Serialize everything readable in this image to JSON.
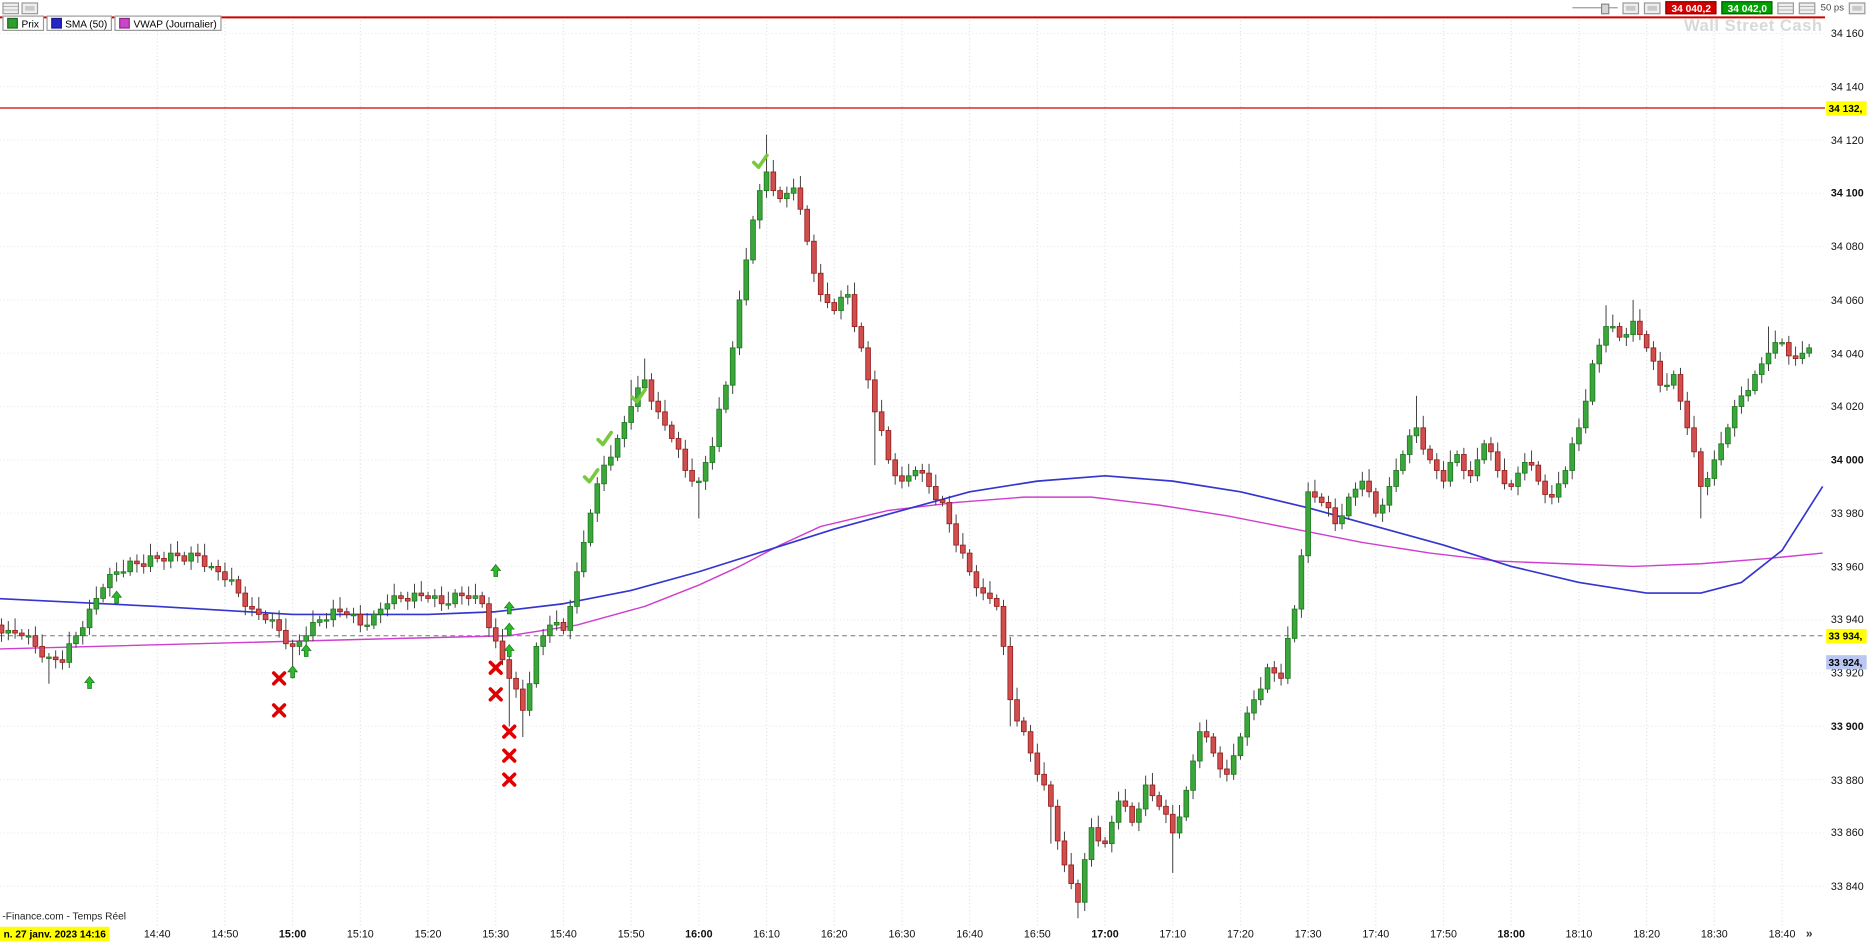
{
  "colors": {
    "up": "#3ba63b",
    "up_stroke": "#1e7a1e",
    "down": "#cf4f4f",
    "down_stroke": "#9b1c1c",
    "sma": "#3535cf",
    "vwap": "#cf3fcf",
    "grid": "#e3e3e3",
    "alert": "#cc0000",
    "sell": "#d40000",
    "buy": "#00a000",
    "arrow": "#2db82d",
    "cross": "#e00000",
    "check": "#77c93e"
  },
  "toolbar": {
    "sell_price": "34 040,2",
    "buy_price": "34 042,0",
    "bar_spacing": "50 ps"
  },
  "legend": [
    {
      "label": "Prix",
      "color": "#2e9e2e"
    },
    {
      "label": "SMA (50)",
      "color": "#2626cc"
    },
    {
      "label": "VWAP (Journalier)",
      "color": "#cc44cc"
    }
  ],
  "footer": {
    "source": "-Finance.com - Temps Réel",
    "cursor_date_tag": "n. 27 janv. 2023 14:16",
    "fast_forward": "»"
  },
  "chart_data": {
    "type": "candlestick",
    "instrument_watermark": "Wall Street Cash",
    "session_start": "14:16",
    "minutes_per_stored_close": 2,
    "y_axis": {
      "min": 33840,
      "max": 34160,
      "step": 20,
      "ticks": [
        {
          "p": 34160,
          "label": "34 160"
        },
        {
          "p": 34140,
          "label": "34 140"
        },
        {
          "p": 34120,
          "label": "34 120"
        },
        {
          "p": 34100,
          "label": "34 100"
        },
        {
          "p": 34080,
          "label": "34 080"
        },
        {
          "p": 34060,
          "label": "34 060"
        },
        {
          "p": 34040,
          "label": "34 040"
        },
        {
          "p": 34020,
          "label": "34 020"
        },
        {
          "p": 34000,
          "label": "34 000"
        },
        {
          "p": 33980,
          "label": "33 980"
        },
        {
          "p": 33960,
          "label": "33 960"
        },
        {
          "p": 33940,
          "label": "33 940"
        },
        {
          "p": 33920,
          "label": "33 920"
        },
        {
          "p": 33900,
          "label": "33 900"
        },
        {
          "p": 33880,
          "label": "33 880"
        },
        {
          "p": 33860,
          "label": "33 860"
        },
        {
          "p": 33840,
          "label": "33 840"
        }
      ]
    },
    "x_axis": {
      "ticks": [
        {
          "m": 24,
          "label": "14:40"
        },
        {
          "m": 34,
          "label": "14:50"
        },
        {
          "m": 44,
          "label": "15:00"
        },
        {
          "m": 54,
          "label": "15:10"
        },
        {
          "m": 64,
          "label": "15:20"
        },
        {
          "m": 74,
          "label": "15:30"
        },
        {
          "m": 84,
          "label": "15:40"
        },
        {
          "m": 94,
          "label": "15:50"
        },
        {
          "m": 104,
          "label": "16:00"
        },
        {
          "m": 114,
          "label": "16:10"
        },
        {
          "m": 124,
          "label": "16:20"
        },
        {
          "m": 134,
          "label": "16:30"
        },
        {
          "m": 144,
          "label": "16:40"
        },
        {
          "m": 154,
          "label": "16:50"
        },
        {
          "m": 164,
          "label": "17:00"
        },
        {
          "m": 174,
          "label": "17:10"
        },
        {
          "m": 184,
          "label": "17:20"
        },
        {
          "m": 194,
          "label": "17:30"
        },
        {
          "m": 204,
          "label": "17:40"
        },
        {
          "m": 214,
          "label": "17:50"
        },
        {
          "m": 224,
          "label": "18:00"
        },
        {
          "m": 234,
          "label": "18:10"
        },
        {
          "m": 244,
          "label": "18:20"
        },
        {
          "m": 254,
          "label": "18:30"
        },
        {
          "m": 264,
          "label": "18:40"
        }
      ]
    },
    "first_open": 33940,
    "closes": [
      33938,
      33936,
      33934,
      33930,
      33926,
      33924,
      33934,
      33944,
      33952,
      33958,
      33962,
      33960,
      33963,
      33965,
      33962,
      33964,
      33960,
      33955,
      33950,
      33944,
      33940,
      33936,
      33930,
      33934,
      33940,
      33944,
      33942,
      33938,
      33942,
      33946,
      33948,
      33950,
      33948,
      33946,
      33950,
      33948,
      33946,
      33932,
      33918,
      33906,
      33930,
      33938,
      33936,
      33958,
      33980,
      33998,
      34008,
      34020,
      34030,
      34018,
      34008,
      33996,
      33992,
      34005,
      34028,
      34060,
      34090,
      34108,
      34098,
      34102,
      34082,
      34062,
      34056,
      34062,
      34042,
      34018,
      34000,
      33992,
      33996,
      33990,
      33984,
      33968,
      33958,
      33950,
      33945,
      33910,
      33898,
      33882,
      33870,
      33848,
      33834,
      33862,
      33856,
      33872,
      33864,
      33878,
      33870,
      33860,
      33876,
      33898,
      33890,
      33882,
      33896,
      33910,
      33922,
      33918,
      33944,
      33988,
      33984,
      33976,
      33986,
      33992,
      33980,
      33990,
      34002,
      34012,
      34000,
      33992,
      34002,
      33994,
      34006,
      33996,
      33990,
      33999,
      33992,
      33986,
      33996,
      34012,
      34036,
      34050,
      34046,
      34052,
      34042,
      34028,
      34032,
      34012,
      33990,
      34000,
      34012,
      34024,
      34032,
      34040,
      34044,
      34038,
      34042
    ],
    "wick_overrides": {
      "4": {
        "lo": 33916
      },
      "22": {
        "lo": 33918
      },
      "38": {
        "lo": 33900
      },
      "39": {
        "lo": 33896
      },
      "47": {
        "hi": 34030
      },
      "48": {
        "hi": 34038
      },
      "52": {
        "lo": 33978
      },
      "57": {
        "hi": 34122
      },
      "65": {
        "lo": 33998
      },
      "75": {
        "lo": 33900
      },
      "78": {
        "lo": 33856
      },
      "80": {
        "lo": 33828
      },
      "87": {
        "lo": 33845
      },
      "105": {
        "hi": 34024
      },
      "119": {
        "hi": 34058
      },
      "121": {
        "hi": 34060
      },
      "126": {
        "lo": 33978
      },
      "131": {
        "hi": 34050
      }
    },
    "sma50": [
      [
        0,
        33948
      ],
      [
        24,
        33945
      ],
      [
        44,
        33942
      ],
      [
        64,
        33942
      ],
      [
        74,
        33943
      ],
      [
        84,
        33946
      ],
      [
        94,
        33951
      ],
      [
        104,
        33958
      ],
      [
        114,
        33966
      ],
      [
        124,
        33974
      ],
      [
        134,
        33981
      ],
      [
        144,
        33988
      ],
      [
        154,
        33992
      ],
      [
        164,
        33994
      ],
      [
        174,
        33992
      ],
      [
        184,
        33988
      ],
      [
        194,
        33982
      ],
      [
        204,
        33975
      ],
      [
        214,
        33968
      ],
      [
        224,
        33960
      ],
      [
        234,
        33954
      ],
      [
        244,
        33950
      ],
      [
        252,
        33950
      ],
      [
        258,
        33954
      ],
      [
        264,
        33966
      ],
      [
        270,
        33990
      ]
    ],
    "vwap": [
      [
        0,
        33929
      ],
      [
        30,
        33931
      ],
      [
        60,
        33933
      ],
      [
        76,
        33934
      ],
      [
        86,
        33938
      ],
      [
        96,
        33945
      ],
      [
        104,
        33953
      ],
      [
        110,
        33960
      ],
      [
        116,
        33968
      ],
      [
        122,
        33975
      ],
      [
        132,
        33981
      ],
      [
        142,
        33984
      ],
      [
        152,
        33986
      ],
      [
        162,
        33986
      ],
      [
        172,
        33983
      ],
      [
        182,
        33979
      ],
      [
        192,
        33974
      ],
      [
        202,
        33969
      ],
      [
        212,
        33965
      ],
      [
        222,
        33962
      ],
      [
        232,
        33961
      ],
      [
        242,
        33960
      ],
      [
        252,
        33961
      ],
      [
        262,
        33963
      ],
      [
        270,
        33965
      ]
    ],
    "hlines": [
      {
        "price": 34166,
        "width": 1.6
      },
      {
        "price": 34132,
        "width": 1
      }
    ],
    "cursor_line_price": 33934,
    "price_tags": [
      {
        "price": 34132,
        "label": "34 132,",
        "bg": "#ffff00"
      },
      {
        "price": 33934,
        "label": "33 934,",
        "bg": "#ffff00"
      },
      {
        "price": 33924,
        "label": "33 924,",
        "bg": "#b9c7f2"
      }
    ],
    "markers": {
      "buy_arrows": [
        [
          14,
          33916
        ],
        [
          18,
          33948
        ],
        [
          44,
          33920
        ],
        [
          46,
          33928
        ],
        [
          74,
          33958
        ],
        [
          76,
          33944
        ],
        [
          76,
          33936
        ],
        [
          76,
          33928
        ]
      ],
      "sell_x": [
        [
          42,
          33918
        ],
        [
          42,
          33906
        ],
        [
          74,
          33922
        ],
        [
          74,
          33912
        ],
        [
          76,
          33898
        ],
        [
          76,
          33889
        ],
        [
          76,
          33880
        ]
      ],
      "checks": [
        [
          88,
          33994
        ],
        [
          90,
          34008
        ],
        [
          95,
          34024
        ],
        [
          113,
          34112
        ]
      ]
    }
  }
}
